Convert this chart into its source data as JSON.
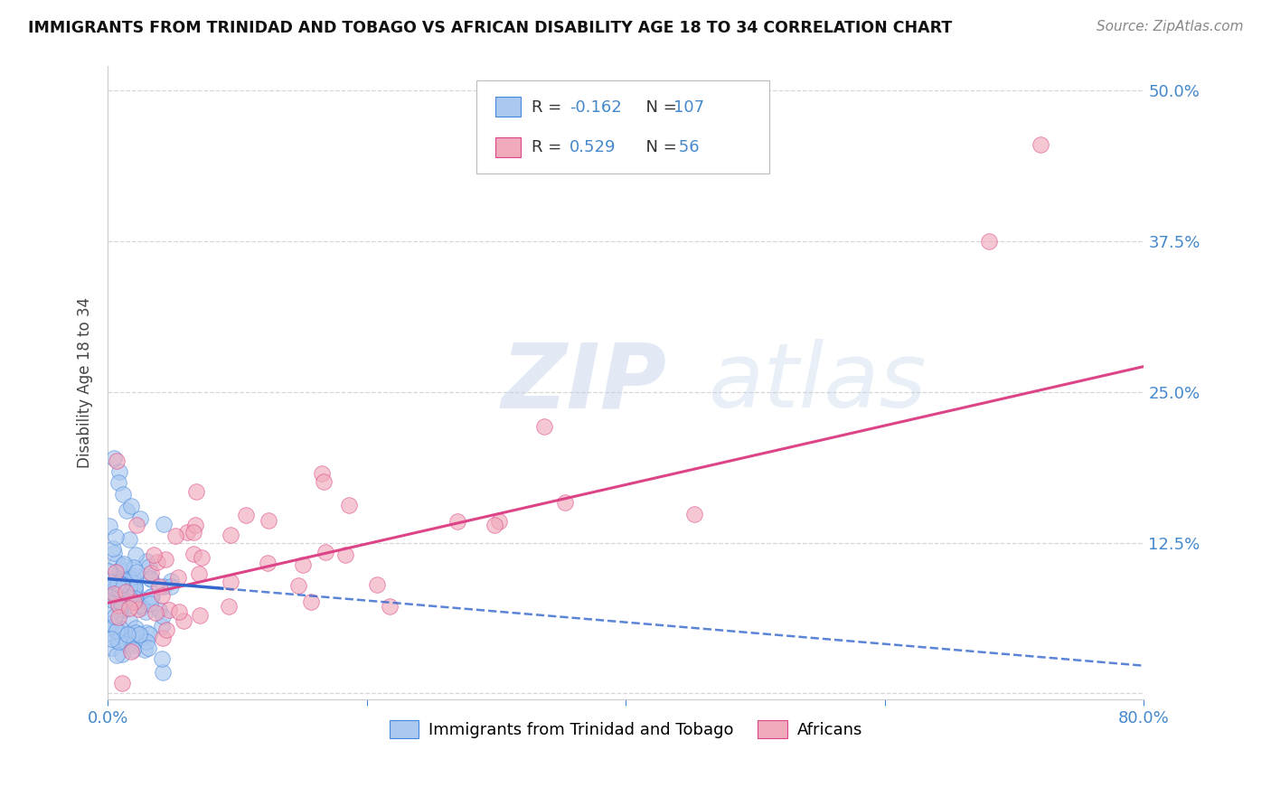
{
  "title": "IMMIGRANTS FROM TRINIDAD AND TOBAGO VS AFRICAN DISABILITY AGE 18 TO 34 CORRELATION CHART",
  "source": "Source: ZipAtlas.com",
  "ylabel": "Disability Age 18 to 34",
  "xlim": [
    0.0,
    0.8
  ],
  "ylim": [
    -0.005,
    0.52
  ],
  "xticks": [
    0.0,
    0.2,
    0.4,
    0.6,
    0.8
  ],
  "xticklabels": [
    "0.0%",
    "",
    "",
    "",
    "80.0%"
  ],
  "yticks": [
    0.0,
    0.125,
    0.25,
    0.375,
    0.5
  ],
  "yticklabels": [
    "",
    "12.5%",
    "25.0%",
    "37.5%",
    "50.0%"
  ],
  "grid_color": "#cccccc",
  "background_color": "#ffffff",
  "blue_fill": "#aac8f0",
  "blue_edge": "#4488dd",
  "pink_fill": "#f0aabb",
  "pink_edge": "#dd4488",
  "blue_line_color": "#3366cc",
  "pink_line_color": "#dd4488",
  "R_blue": -0.162,
  "N_blue": 107,
  "R_pink": 0.529,
  "N_pink": 56,
  "watermark_zip": "ZIP",
  "watermark_atlas": "atlas",
  "legend_blue_label": "Immigrants from Trinidad and Tobago",
  "legend_pink_label": "Africans",
  "blue_scatter_seed": 42,
  "pink_scatter_seed": 77,
  "tick_color": "#4488cc",
  "pink_reg_intercept": 0.075,
  "pink_reg_slope": 0.245,
  "blue_reg_intercept": 0.095,
  "blue_reg_slope": -0.09
}
